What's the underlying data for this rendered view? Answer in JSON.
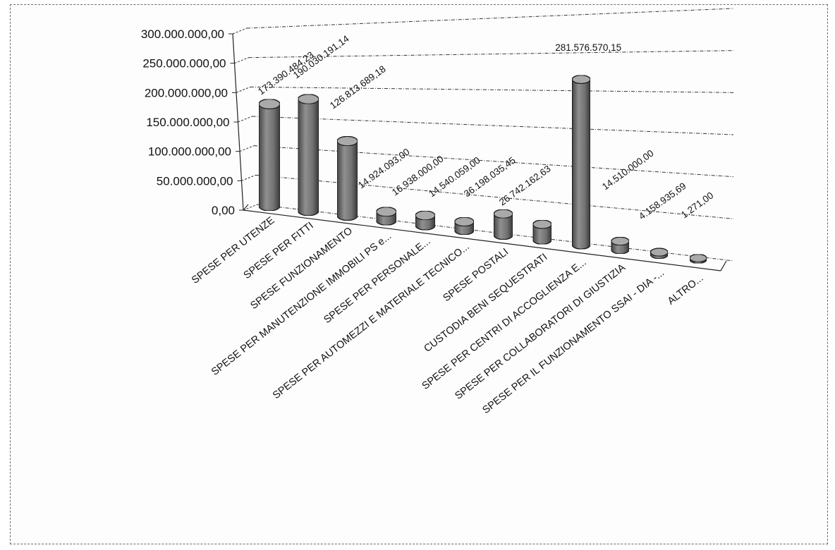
{
  "chart_data": {
    "type": "bar",
    "style": "3d-cylinder",
    "categories": [
      "SPESE PER UTENZE",
      "SPESE PER FITTI",
      "SPESE FUNZIONAMENTO",
      "SPESE PER MANUTENZIONE IMMOBILI PS e...",
      "SPESE PER PERSONALE...",
      "SPESE PER AUTOMEZZI E MATERIALE TECNICO...",
      "SPESE POSTALI",
      "CUSTODIA BENI SEQUESTRATI",
      "SPESE PER CENTRI DI ACCOGLIENZA E...",
      "SPESE PER COLLABORATORI DI GIUSTIZIA",
      "SPESE PER IL FUNZIONAMENTO SSAI - DIA -...",
      "ALTRO..."
    ],
    "values": [
      173390484.23,
      190030191.14,
      126813689.18,
      14924093.0,
      16938000.0,
      14540059.0,
      36198035.45,
      26742162.63,
      281576570.15,
      14510000.0,
      4158935.69,
      1271.0
    ],
    "value_labels": [
      "173.390.484,23",
      "190.030.191,14",
      "126.813.689,18",
      "14.924.093,00",
      "16.938.000,00",
      "14.540.059,00",
      "36.198.035,45",
      "26.742.162,63",
      "281.576.570,15",
      "14.510.000,00",
      "4.158.935,69",
      "1.271,00"
    ],
    "y_ticks": [
      "0,00",
      "50.000.000,00",
      "100.000.000,00",
      "150.000.000,00",
      "200.000.000,00",
      "250.000.000,00",
      "300.000.000,00"
    ],
    "ylim": [
      0,
      300000000
    ],
    "grid": true,
    "bar_fill": "#8a8a8a",
    "title": "",
    "xlabel": "",
    "ylabel": ""
  }
}
